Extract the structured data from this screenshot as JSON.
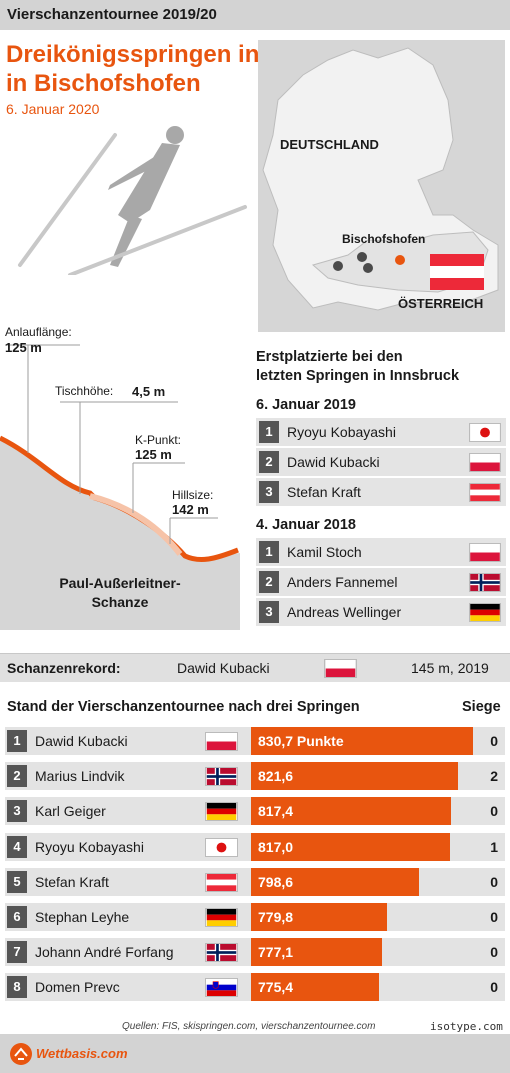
{
  "header": {
    "series": "Vierschanzentournee 2019/20"
  },
  "title": {
    "line1": "Dreikönigsspringen in",
    "line2": "in Bischofshofen",
    "date": "6. Januar 2020"
  },
  "map": {
    "country1": "DEUTSCHLAND",
    "city": "Bischofshofen",
    "country2": "ÖSTERREICH"
  },
  "hill": {
    "anlauf_label": "Anlauflänge:",
    "anlauf_value": "125 m",
    "tisch_label": "Tischhöhe:",
    "tisch_value": "4,5 m",
    "k_label": "K-Punkt:",
    "k_value": "125 m",
    "hs_label": "Hillsize:",
    "hs_value": "142 m",
    "name1": "Paul-Außerleitner-",
    "name2": "Schanze"
  },
  "winners": {
    "heading1": "Erstplatzierte bei den",
    "heading2": "letzten Springen in Innsbruck",
    "groups": [
      {
        "date": "6. Januar 2019",
        "rows": [
          {
            "rank": "1",
            "name": "Ryoyu Kobayashi",
            "flag": "japan"
          },
          {
            "rank": "2",
            "name": "Dawid Kubacki",
            "flag": "poland"
          },
          {
            "rank": "3",
            "name": "Stefan Kraft",
            "flag": "austria"
          }
        ]
      },
      {
        "date": "4. Januar 2018",
        "rows": [
          {
            "rank": "1",
            "name": "Kamil Stoch",
            "flag": "poland"
          },
          {
            "rank": "2",
            "name": "Anders Fannemel",
            "flag": "norway"
          },
          {
            "rank": "3",
            "name": "Andreas Wellinger",
            "flag": "germany"
          }
        ]
      }
    ]
  },
  "record": {
    "label": "Schanzenrekord:",
    "name": "Dawid Kubacki",
    "flag": "poland",
    "value": "145 m, 2019"
  },
  "chart_data": {
    "type": "bar",
    "title": "Stand der Vierschanzentournee nach drei Springen",
    "wins_header": "Siege",
    "categories": [
      "Dawid Kubacki",
      "Marius Lindvik",
      "Karl Geiger",
      "Ryoyu Kobayashi",
      "Stefan Kraft",
      "Stephan Leyhe",
      "Johann André Forfang",
      "Domen Prevc"
    ],
    "ranks": [
      "1",
      "2",
      "3",
      "4",
      "5",
      "6",
      "7",
      "8"
    ],
    "flags": [
      "poland",
      "norway",
      "germany",
      "japan",
      "austria",
      "germany",
      "norway",
      "slovenia"
    ],
    "values": [
      830.7,
      821.6,
      817.4,
      817.0,
      798.6,
      779.8,
      777.1,
      775.4
    ],
    "value_labels": [
      "830,7 Punkte",
      "821,6",
      "817,4",
      "817,0",
      "798,6",
      "779,8",
      "777,1",
      "775,4"
    ],
    "wins": [
      "0",
      "2",
      "0",
      "1",
      "0",
      "0",
      "0",
      "0"
    ],
    "bar_color": "#e8550f"
  },
  "source": "Quellen: FIS, skispringen.com, vierschanzentournee.com",
  "credit": "isotype.com",
  "brand": "Wettbasis.com",
  "colors": {
    "accent": "#e8550f",
    "panel": "#d3d3d3"
  }
}
